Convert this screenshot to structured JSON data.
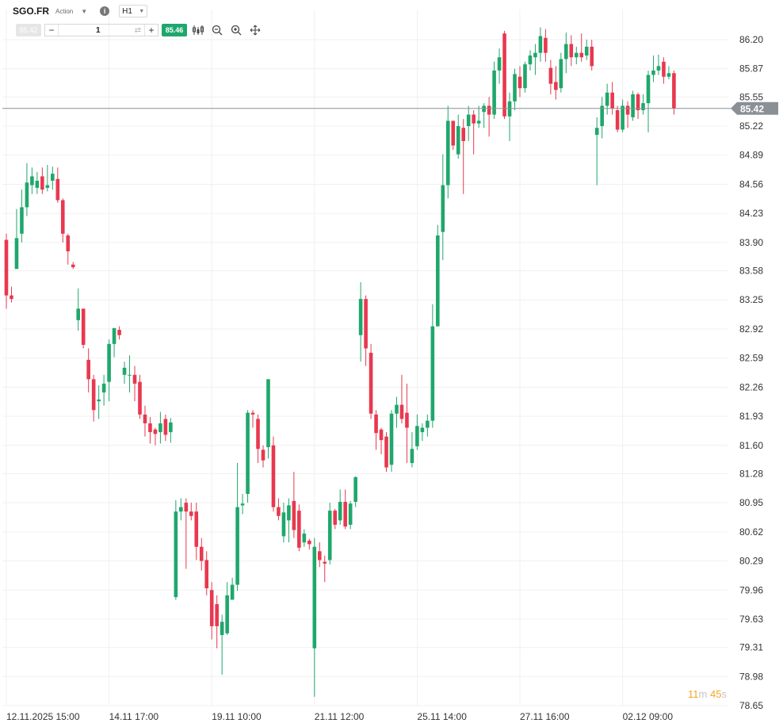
{
  "header": {
    "symbol": "SGO.FR",
    "asset_type": "Action",
    "info_glyph": "i",
    "timeframe": "H1"
  },
  "trade": {
    "sell_price": "85.42",
    "minus": "−",
    "quantity": "1",
    "plus": "+",
    "buy_price": "85.46"
  },
  "toolbar": {
    "icons": [
      "candlestick-type-icon",
      "zoom-out-icon",
      "zoom-in-icon",
      "crosshair-move-icon"
    ]
  },
  "countdown": {
    "minutes": "11",
    "minutes_unit": "m",
    "seconds": "45",
    "seconds_unit": "s"
  },
  "colors": {
    "up": "#1fa76c",
    "down": "#e8384f",
    "price_line": "#8a9096",
    "grid": "#f0f0f0",
    "price_tag": "#8a9096"
  },
  "chart_data": {
    "type": "candlestick",
    "current_price": "85.42",
    "y_ticks": [
      "86.20",
      "85.87",
      "85.55",
      "85.22",
      "84.89",
      "84.56",
      "84.23",
      "83.90",
      "83.58",
      "83.25",
      "82.92",
      "82.59",
      "82.26",
      "81.93",
      "81.60",
      "81.28",
      "80.95",
      "80.62",
      "80.29",
      "79.96",
      "79.63",
      "79.31",
      "78.98",
      "78.65"
    ],
    "x_ticks": [
      "12.11.2025 15:00",
      "14.11 17:00",
      "19.11 10:00",
      "21.11 12:00",
      "25.11 14:00",
      "27.11 16:00",
      "02.12 09:00"
    ],
    "ylim": [
      78.65,
      86.2
    ],
    "candles": [
      [
        83.93,
        83.3,
        84.0,
        83.15
      ],
      [
        83.3,
        83.26,
        83.4,
        83.22
      ],
      [
        83.6,
        83.95,
        84.28,
        83.78
      ],
      [
        84.0,
        84.3,
        84.5,
        83.9
      ],
      [
        84.3,
        84.58,
        84.8,
        84.2
      ],
      [
        84.55,
        84.65,
        84.75,
        84.45
      ],
      [
        84.52,
        84.6,
        84.7,
        84.45
      ],
      [
        84.65,
        84.5,
        84.75,
        84.45
      ],
      [
        84.52,
        84.55,
        84.78,
        84.48
      ],
      [
        84.6,
        84.68,
        84.76,
        84.5
      ],
      [
        84.62,
        84.38,
        84.75,
        84.35
      ],
      [
        84.38,
        84.0,
        84.4,
        83.9
      ],
      [
        83.98,
        83.8,
        84.0,
        83.65
      ],
      [
        83.65,
        83.62,
        83.68,
        83.6
      ],
      [
        83.02,
        83.15,
        83.38,
        82.9
      ],
      [
        83.15,
        82.74,
        83.15,
        82.7
      ],
      [
        82.57,
        82.35,
        82.7,
        82.2
      ],
      [
        82.35,
        82.0,
        82.4,
        81.87
      ],
      [
        82.1,
        82.12,
        82.28,
        81.9
      ],
      [
        82.2,
        82.3,
        82.4,
        82.05
      ],
      [
        82.32,
        82.75,
        82.8,
        82.1
      ],
      [
        82.75,
        82.93,
        82.93,
        82.6
      ],
      [
        82.91,
        82.85,
        82.95,
        82.8
      ],
      [
        82.4,
        82.48,
        82.55,
        82.3
      ],
      [
        82.4,
        82.4,
        82.62,
        82.2
      ],
      [
        82.4,
        82.3,
        82.5,
        82.1
      ],
      [
        82.32,
        81.95,
        82.4,
        81.9
      ],
      [
        81.95,
        81.85,
        82.05,
        81.7
      ],
      [
        81.85,
        81.75,
        81.92,
        81.62
      ],
      [
        81.78,
        81.73,
        81.8,
        81.6
      ],
      [
        81.75,
        81.85,
        81.98,
        81.62
      ],
      [
        81.9,
        81.72,
        81.95,
        81.65
      ],
      [
        81.75,
        81.86,
        81.91,
        81.63
      ],
      [
        79.88,
        80.85,
        80.98,
        79.85
      ],
      [
        80.85,
        80.9,
        81.0,
        80.75
      ],
      [
        80.95,
        80.85,
        81.0,
        80.2
      ],
      [
        80.85,
        80.8,
        80.95,
        80.75
      ],
      [
        80.85,
        80.45,
        80.95,
        80.3
      ],
      [
        80.45,
        80.29,
        80.55,
        80.18
      ],
      [
        80.3,
        79.98,
        80.4,
        79.9
      ],
      [
        79.96,
        79.55,
        80.05,
        79.4
      ],
      [
        79.8,
        79.55,
        79.9,
        79.3
      ],
      [
        79.45,
        79.6,
        79.68,
        79.0
      ],
      [
        79.47,
        79.9,
        80.05,
        79.45
      ],
      [
        79.85,
        80.02,
        80.1,
        79.85
      ],
      [
        80.02,
        80.9,
        81.4,
        79.95
      ],
      [
        80.92,
        80.94,
        81.05,
        80.82
      ],
      [
        81.05,
        81.97,
        82.0,
        80.95
      ],
      [
        81.97,
        81.95,
        82.0,
        81.8
      ],
      [
        81.9,
        81.56,
        81.95,
        81.4
      ],
      [
        81.55,
        81.43,
        81.6,
        81.35
      ],
      [
        81.58,
        82.35,
        82.35,
        81.45
      ],
      [
        81.6,
        80.9,
        81.7,
        80.85
      ],
      [
        80.9,
        80.8,
        81.0,
        80.75
      ],
      [
        80.57,
        80.84,
        80.95,
        80.5
      ],
      [
        80.75,
        80.92,
        81.0,
        80.5
      ],
      [
        80.97,
        80.64,
        81.3,
        80.55
      ],
      [
        80.86,
        80.44,
        80.93,
        80.4
      ],
      [
        80.5,
        80.6,
        80.65,
        80.45
      ],
      [
        80.52,
        80.48,
        80.54,
        80.42
      ],
      [
        79.3,
        80.45,
        80.55,
        78.75
      ],
      [
        80.4,
        80.3,
        80.5,
        80.22
      ],
      [
        80.28,
        80.26,
        80.35,
        80.05
      ],
      [
        80.3,
        80.86,
        80.95,
        80.25
      ],
      [
        80.86,
        80.7,
        80.88,
        80.65
      ],
      [
        80.75,
        80.96,
        81.1,
        80.7
      ],
      [
        80.96,
        80.68,
        81.1,
        80.65
      ],
      [
        80.7,
        80.94,
        80.97,
        80.65
      ],
      [
        80.96,
        81.24,
        81.25,
        80.9
      ],
      [
        82.85,
        83.26,
        83.45,
        82.55
      ],
      [
        83.26,
        82.7,
        83.3,
        82.5
      ],
      [
        82.65,
        81.96,
        82.75,
        81.9
      ],
      [
        81.95,
        81.74,
        82.0,
        81.55
      ],
      [
        81.78,
        81.66,
        81.8,
        81.5
      ],
      [
        81.7,
        81.35,
        81.75,
        81.3
      ],
      [
        81.38,
        81.96,
        82.0,
        81.3
      ],
      [
        81.96,
        82.06,
        82.15,
        81.8
      ],
      [
        82.06,
        81.9,
        82.4,
        81.85
      ],
      [
        81.97,
        81.8,
        82.3,
        81.4
      ],
      [
        81.4,
        81.56,
        81.75,
        81.35
      ],
      [
        81.59,
        81.82,
        81.95,
        81.55
      ],
      [
        81.75,
        81.8,
        81.85,
        81.65
      ],
      [
        81.8,
        81.88,
        81.95,
        81.7
      ],
      [
        81.88,
        82.95,
        83.2,
        81.8
      ],
      [
        82.95,
        83.98,
        84.1,
        82.95
      ],
      [
        84.02,
        84.55,
        84.9,
        83.7
      ],
      [
        84.55,
        85.28,
        85.45,
        84.4
      ],
      [
        85.28,
        85.0,
        85.25,
        84.95
      ],
      [
        84.9,
        85.22,
        85.35,
        84.85
      ],
      [
        85.2,
        85.05,
        85.3,
        84.45
      ],
      [
        85.22,
        85.35,
        85.45,
        85.05
      ],
      [
        85.35,
        85.25,
        85.4,
        84.9
      ],
      [
        85.25,
        85.28,
        85.45,
        85.2
      ],
      [
        85.38,
        85.45,
        85.48,
        85.2
      ],
      [
        85.45,
        85.35,
        85.55,
        85.1
      ],
      [
        85.35,
        85.85,
        85.95,
        85.3
      ],
      [
        85.85,
        86.0,
        86.1,
        85.7
      ],
      [
        86.27,
        85.33,
        86.3,
        85.3
      ],
      [
        85.33,
        85.5,
        85.6,
        85.05
      ],
      [
        85.5,
        85.81,
        85.87,
        85.4
      ],
      [
        85.78,
        85.65,
        85.9,
        85.55
      ],
      [
        85.65,
        85.92,
        85.95,
        85.6
      ],
      [
        85.92,
        86.02,
        86.08,
        85.85
      ],
      [
        86.0,
        86.05,
        86.15,
        85.8
      ],
      [
        86.05,
        86.24,
        86.34,
        85.95
      ],
      [
        86.22,
        86.05,
        86.32,
        85.95
      ],
      [
        85.88,
        85.7,
        85.97,
        85.58
      ],
      [
        85.72,
        85.63,
        85.9,
        85.52
      ],
      [
        85.65,
        85.98,
        86.05,
        85.6
      ],
      [
        85.98,
        86.15,
        86.28,
        85.82
      ],
      [
        86.15,
        86.0,
        86.25,
        85.9
      ],
      [
        86.0,
        86.05,
        86.12,
        85.92
      ],
      [
        86.05,
        86.0,
        86.27,
        85.95
      ],
      [
        86.02,
        86.12,
        86.2,
        85.97
      ],
      [
        86.12,
        85.9,
        86.2,
        85.85
      ],
      [
        85.12,
        85.2,
        85.32,
        84.55
      ],
      [
        85.22,
        85.45,
        85.55,
        85.08
      ],
      [
        85.45,
        85.6,
        85.7,
        85.35
      ],
      [
        85.6,
        85.42,
        85.72,
        85.35
      ],
      [
        85.4,
        85.18,
        85.45,
        85.15
      ],
      [
        85.18,
        85.45,
        85.52,
        85.15
      ],
      [
        85.45,
        85.35,
        85.5,
        85.2
      ],
      [
        85.32,
        85.58,
        85.62,
        85.28
      ],
      [
        85.58,
        85.4,
        85.6,
        85.3
      ],
      [
        85.4,
        85.48,
        85.58,
        85.35
      ],
      [
        85.48,
        85.8,
        85.85,
        85.15
      ],
      [
        85.8,
        85.85,
        86.02,
        85.72
      ],
      [
        85.85,
        85.9,
        86.03,
        85.8
      ],
      [
        85.95,
        85.78,
        86.0,
        85.7
      ],
      [
        85.78,
        85.82,
        85.9,
        85.75
      ],
      [
        85.82,
        85.42,
        85.85,
        85.35
      ]
    ]
  }
}
